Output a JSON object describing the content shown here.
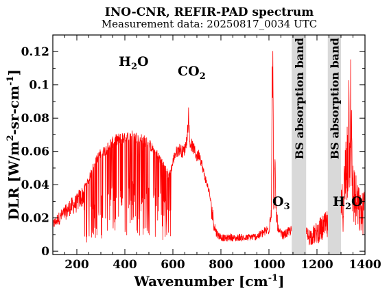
{
  "chart_data": {
    "type": "line",
    "title": "INO-CNR, REFIR-PAD spectrum",
    "subtitle": "Measurement data: 20250817_0034 UTC",
    "xlabel": "Wavenumber [cm-1]",
    "xlabel_main": "Wavenumber [cm",
    "xlabel_sup": "-1",
    "xlabel_close": "]",
    "ylabel": "DLR [W/m2-sr-cm-1]",
    "ylabel_main": "DLR [W/m",
    "ylabel_sup1": "2",
    "ylabel_mid": "-sr-cm",
    "ylabel_sup2": "-1",
    "ylabel_close": "]",
    "xlim": [
      100,
      1400
    ],
    "ylim": [
      -0.002,
      0.13
    ],
    "x_ticks": [
      200,
      400,
      600,
      800,
      1000,
      1200,
      1400
    ],
    "y_ticks": [
      0,
      0.02,
      0.04,
      0.06,
      0.08,
      0.1,
      0.12
    ],
    "y_tick_labels": [
      "0",
      "0.02",
      "0.04",
      "0.06",
      "0.08",
      "0.1",
      "0.12"
    ],
    "series_color": "#ff0000",
    "band_color": "#d9d9d9",
    "annotations": {
      "h2o_left": {
        "main": "H",
        "sub": "2",
        "tail": "O"
      },
      "co2": {
        "main": "CO",
        "sub": "2",
        "tail": ""
      },
      "o3": {
        "main": "O",
        "sub": "3",
        "tail": ""
      },
      "h2o_right": {
        "main": "H",
        "sub": "2",
        "tail": "O"
      }
    },
    "bands": [
      {
        "x_start": 1095,
        "x_end": 1155,
        "label": "BS absorption band"
      },
      {
        "x_start": 1245,
        "x_end": 1300,
        "label": "BS absorption band"
      }
    ],
    "series": [
      {
        "x": [
          100,
          110,
          120,
          130,
          140,
          150,
          160,
          170,
          180,
          190,
          200,
          210,
          220,
          230,
          240,
          250,
          260,
          270,
          280,
          290,
          300,
          310,
          320,
          330,
          340,
          350,
          360,
          370,
          380,
          390,
          400,
          410,
          420,
          430,
          440,
          450,
          460,
          470,
          480,
          490,
          500,
          510,
          520,
          530,
          540,
          550,
          560,
          570,
          580,
          590,
          600,
          610,
          620,
          630,
          640,
          650,
          660,
          665,
          670,
          680,
          690,
          700,
          710,
          720,
          730,
          740,
          750,
          760,
          770,
          780,
          790,
          800,
          820,
          840,
          860,
          880,
          900,
          920,
          940,
          960,
          980,
          1000,
          1010,
          1015,
          1020,
          1025,
          1030,
          1040,
          1060,
          1080,
          1090,
          1160,
          1180,
          1200,
          1220,
          1240,
          1300,
          1310,
          1320,
          1330,
          1340,
          1345,
          1350,
          1360,
          1370,
          1380,
          1390,
          1400
        ],
        "y": [
          0.018,
          0.02,
          0.022,
          0.023,
          0.025,
          0.026,
          0.028,
          0.03,
          0.031,
          0.032,
          0.033,
          0.036,
          0.037,
          0.04,
          0.043,
          0.045,
          0.05,
          0.054,
          0.057,
          0.06,
          0.062,
          0.063,
          0.064,
          0.066,
          0.068,
          0.069,
          0.07,
          0.071,
          0.071,
          0.072,
          0.071,
          0.072,
          0.073,
          0.073,
          0.072,
          0.072,
          0.071,
          0.071,
          0.07,
          0.069,
          0.068,
          0.066,
          0.064,
          0.062,
          0.06,
          0.058,
          0.055,
          0.052,
          0.048,
          0.05,
          0.056,
          0.061,
          0.063,
          0.064,
          0.062,
          0.064,
          0.072,
          0.086,
          0.068,
          0.066,
          0.063,
          0.059,
          0.061,
          0.055,
          0.048,
          0.043,
          0.038,
          0.029,
          0.018,
          0.012,
          0.01,
          0.009,
          0.008,
          0.009,
          0.008,
          0.009,
          0.008,
          0.009,
          0.009,
          0.01,
          0.012,
          0.014,
          0.028,
          0.13,
          0.03,
          0.05,
          0.025,
          0.012,
          0.01,
          0.012,
          0.013,
          0.012,
          0.012,
          0.015,
          0.018,
          0.02,
          0.03,
          0.04,
          0.06,
          0.09,
          0.13,
          0.06,
          0.05,
          0.04,
          0.035,
          0.03,
          0.03,
          0.035
        ]
      }
    ]
  }
}
